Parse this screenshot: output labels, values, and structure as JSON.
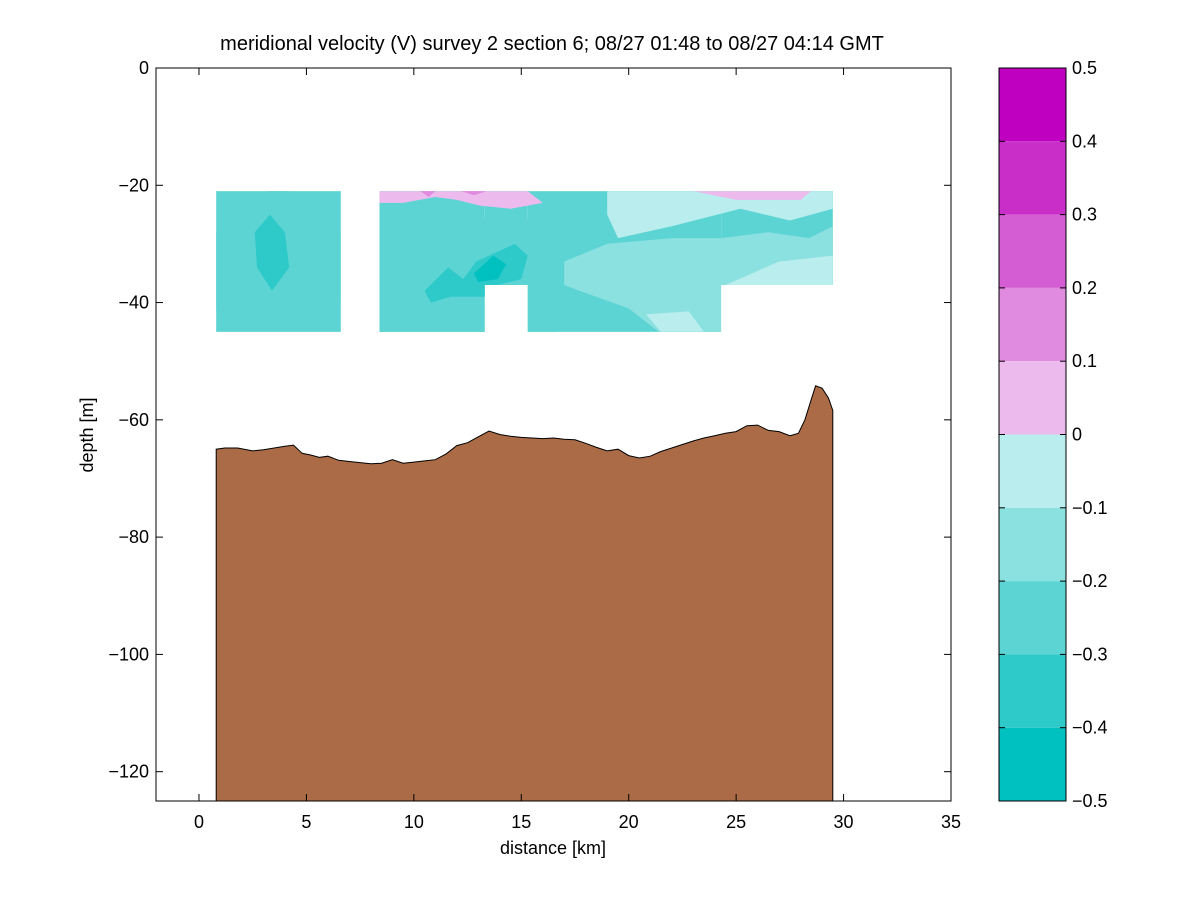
{
  "chart_data": {
    "type": "contour",
    "title": "meridional velocity (V) survey 2 section 6; 08/27 01:48 to 08/27 04:14 GMT",
    "xlabel": "distance [km]",
    "ylabel": "depth [m]",
    "xlim": [
      -2,
      35
    ],
    "ylim": [
      -125,
      0
    ],
    "xticks": [
      0,
      5,
      10,
      15,
      20,
      25,
      30,
      35
    ],
    "yticks": [
      0,
      -20,
      -40,
      -60,
      -80,
      -100,
      -120
    ],
    "grid": false,
    "colorbar": {
      "location": "right",
      "range": [
        -0.5,
        0.5
      ],
      "ticks": [
        0.5,
        0.4,
        0.3,
        0.2,
        0.1,
        0,
        -0.1,
        -0.2,
        -0.3,
        -0.4,
        -0.5
      ],
      "tick_labels": [
        "0.5",
        "0.4",
        "0.3",
        "0.2",
        "0.1",
        "0",
        "−0.1",
        "−0.2",
        "−0.3",
        "−0.4",
        "−0.5"
      ],
      "levels": [
        {
          "from": 0.4,
          "to": 0.5,
          "color": "#c000c0"
        },
        {
          "from": 0.3,
          "to": 0.4,
          "color": "#c92ec9"
        },
        {
          "from": 0.2,
          "to": 0.3,
          "color": "#d45dd4"
        },
        {
          "from": 0.1,
          "to": 0.2,
          "color": "#e08be0"
        },
        {
          "from": 0.0,
          "to": 0.1,
          "color": "#edbaed"
        },
        {
          "from": -0.1,
          "to": 0.0,
          "color": "#baeded"
        },
        {
          "from": -0.2,
          "to": -0.1,
          "color": "#8be0e0"
        },
        {
          "from": -0.3,
          "to": -0.2,
          "color": "#5dd4d4"
        },
        {
          "from": -0.4,
          "to": -0.3,
          "color": "#2ec9c9"
        },
        {
          "from": -0.5,
          "to": -0.4,
          "color": "#00c0c0"
        }
      ]
    },
    "velocity_field": {
      "blocks": [
        {
          "x": [
            0.8,
            6.6
          ],
          "depth": [
            -21,
            -45
          ]
        },
        {
          "x": [
            8.4,
            13.3
          ],
          "depth": [
            -21,
            -45
          ]
        },
        {
          "x": [
            13.3,
            15.3
          ],
          "depth": [
            -21,
            -37
          ]
        },
        {
          "x": [
            15.3,
            24.3
          ],
          "depth": [
            -21,
            -45
          ]
        },
        {
          "x": [
            24.3,
            29.5
          ],
          "depth": [
            -21,
            -37
          ]
        }
      ],
      "patches": [
        {
          "level": -0.3,
          "points": [
            [
              0.8,
              -28
            ],
            [
              1.5,
              -27
            ],
            [
              2.5,
              -24
            ],
            [
              3.2,
              -21
            ],
            [
              4.2,
              -21
            ],
            [
              4.8,
              -26
            ],
            [
              6.0,
              -29
            ],
            [
              6.6,
              -28
            ],
            [
              6.6,
              -40
            ],
            [
              5.3,
              -41
            ],
            [
              4.5,
              -44
            ],
            [
              3.5,
              -41
            ],
            [
              2.0,
              -43
            ],
            [
              0.8,
              -41
            ]
          ]
        },
        {
          "level": -0.4,
          "points": [
            [
              2.6,
              -28
            ],
            [
              3.3,
              -25
            ],
            [
              4.0,
              -28
            ],
            [
              4.2,
              -34
            ],
            [
              3.4,
              -38
            ],
            [
              2.7,
              -34
            ]
          ]
        },
        {
          "level": -0.3,
          "points": [
            [
              8.4,
              -26
            ],
            [
              9.8,
              -24
            ],
            [
              10.9,
              -25
            ],
            [
              11.3,
              -22
            ],
            [
              12.0,
              -24
            ],
            [
              13.0,
              -26
            ],
            [
              14.4,
              -25
            ],
            [
              15.5,
              -26
            ],
            [
              16.3,
              -29
            ],
            [
              17.0,
              -33
            ],
            [
              16.8,
              -37
            ],
            [
              15.3,
              -37
            ],
            [
              13.3,
              -37
            ],
            [
              13.3,
              -45
            ],
            [
              8.4,
              -45
            ]
          ]
        },
        {
          "level": -0.4,
          "points": [
            [
              10.5,
              -38
            ],
            [
              11.6,
              -34
            ],
            [
              12.3,
              -36
            ],
            [
              12.9,
              -33
            ],
            [
              14.7,
              -30
            ],
            [
              15.3,
              -32
            ],
            [
              15.0,
              -36
            ],
            [
              13.9,
              -37
            ],
            [
              13.3,
              -39
            ],
            [
              11.7,
              -39
            ],
            [
              10.8,
              -40
            ]
          ]
        },
        {
          "level": -0.5,
          "points": [
            [
              12.8,
              -35
            ],
            [
              13.7,
              -32
            ],
            [
              14.3,
              -33.5
            ],
            [
              13.9,
              -36
            ],
            [
              13.0,
              -36.5
            ]
          ]
        },
        {
          "level": -0.3,
          "points": [
            [
              15.3,
              -37
            ],
            [
              16.8,
              -37
            ],
            [
              16.6,
              -45
            ],
            [
              15.3,
              -45
            ]
          ]
        },
        {
          "level": -0.2,
          "points": [
            [
              17.0,
              -33
            ],
            [
              19.0,
              -30
            ],
            [
              22.0,
              -29
            ],
            [
              24.3,
              -29
            ],
            [
              26.5,
              -28
            ],
            [
              28.4,
              -29
            ],
            [
              29.5,
              -27
            ],
            [
              29.5,
              -37
            ],
            [
              24.3,
              -37
            ],
            [
              24.3,
              -45
            ],
            [
              21.4,
              -45
            ],
            [
              20.0,
              -41
            ],
            [
              17.7,
              -38
            ],
            [
              17.0,
              -37
            ]
          ]
        },
        {
          "level": -0.1,
          "points": [
            [
              19.0,
              -21
            ],
            [
              29.5,
              -21
            ],
            [
              29.5,
              -24
            ],
            [
              27.5,
              -26
            ],
            [
              25.2,
              -24
            ],
            [
              22.0,
              -27
            ],
            [
              19.5,
              -29
            ],
            [
              19.0,
              -25
            ]
          ]
        },
        {
          "level": -0.1,
          "points": [
            [
              24.5,
              -37
            ],
            [
              27.0,
              -33
            ],
            [
              29.5,
              -32
            ],
            [
              29.5,
              -37
            ]
          ]
        },
        {
          "level": -0.1,
          "points": [
            [
              20.8,
              -42
            ],
            [
              22.8,
              -41.5
            ],
            [
              23.5,
              -45
            ],
            [
              21.5,
              -45
            ]
          ]
        },
        {
          "level": 0.0,
          "points": [
            [
              8.4,
              -21
            ],
            [
              15.3,
              -21
            ],
            [
              16.0,
              -23
            ],
            [
              14.5,
              -24
            ],
            [
              13.1,
              -23.5
            ],
            [
              12.0,
              -22.5
            ],
            [
              11.0,
              -22
            ],
            [
              9.5,
              -23
            ],
            [
              8.4,
              -23
            ]
          ]
        },
        {
          "level": 0.0,
          "points": [
            [
              23.0,
              -21
            ],
            [
              28.5,
              -21
            ],
            [
              28.0,
              -22.5
            ],
            [
              25.0,
              -22.5
            ]
          ]
        },
        {
          "level": 0.1,
          "points": [
            [
              10.3,
              -21
            ],
            [
              11.0,
              -21
            ],
            [
              10.7,
              -22
            ]
          ]
        },
        {
          "level": 0.1,
          "points": [
            [
              12.2,
              -21
            ],
            [
              13.4,
              -21
            ],
            [
              12.8,
              -21.7
            ]
          ]
        }
      ]
    },
    "bathymetry": {
      "fill_color": "#aa6b46",
      "x": [
        0.8,
        1.2,
        1.8,
        2.5,
        3.0,
        3.5,
        4.0,
        4.4,
        4.8,
        5.2,
        5.6,
        6.0,
        6.5,
        7.0,
        7.5,
        8.0,
        8.5,
        9.0,
        9.5,
        10.0,
        10.5,
        11.0,
        11.5,
        12.0,
        12.5,
        13.0,
        13.5,
        14.0,
        14.5,
        15.0,
        15.5,
        16.0,
        16.5,
        17.0,
        17.5,
        18.0,
        18.5,
        19.0,
        19.5,
        20.0,
        20.5,
        21.0,
        21.5,
        22.0,
        22.5,
        23.0,
        23.5,
        24.0,
        24.5,
        25.0,
        25.5,
        26.0,
        26.5,
        27.0,
        27.5,
        27.9,
        28.2,
        28.5,
        28.7,
        29.0,
        29.3,
        29.5
      ],
      "depth": [
        -65,
        -64.8,
        -64.8,
        -65.3,
        -65.1,
        -64.8,
        -64.5,
        -64.3,
        -65.7,
        -66.0,
        -66.4,
        -66.2,
        -66.9,
        -67.1,
        -67.3,
        -67.5,
        -67.4,
        -66.8,
        -67.4,
        -67.2,
        -67.0,
        -66.8,
        -65.8,
        -64.4,
        -63.9,
        -62.9,
        -61.9,
        -62.5,
        -62.8,
        -63.0,
        -63.1,
        -63.2,
        -63.1,
        -63.3,
        -63.4,
        -64.0,
        -64.7,
        -65.3,
        -65.0,
        -66.1,
        -66.5,
        -66.2,
        -65.4,
        -64.8,
        -64.2,
        -63.6,
        -63.1,
        -62.7,
        -62.3,
        -62.0,
        -61.0,
        -60.9,
        -61.8,
        -62.0,
        -62.7,
        -62.3,
        -60.0,
        -56.5,
        -54.2,
        -54.6,
        -56.3,
        -58.4
      ]
    }
  }
}
